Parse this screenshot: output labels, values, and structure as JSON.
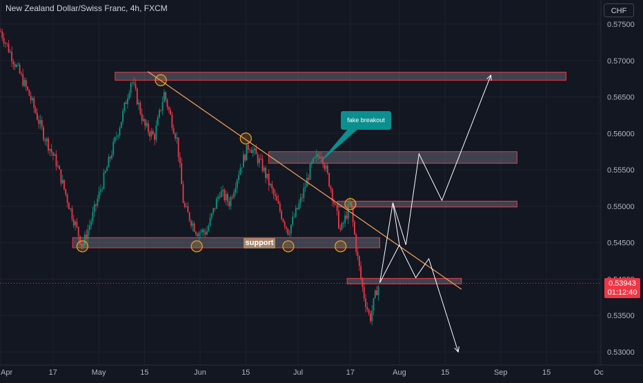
{
  "header": {
    "title": "New Zealand Dollar/Swiss Franc, 4h, FXCM",
    "currency": "CHF"
  },
  "price_tag": {
    "price": "0.53943",
    "countdown": "01:12:40"
  },
  "annotations": {
    "fake_breakout": "fake breakout",
    "support": "support"
  },
  "colors": {
    "background": "#131722",
    "up_candle": "#089981",
    "down_candle": "#f23645",
    "zone_border": "#f23645",
    "trendline": "#f7a35c",
    "projection": "#ffffff",
    "circle": "#f5a623",
    "callout": "#0b8f8f"
  },
  "chart_data": {
    "type": "candlestick",
    "title": "New Zealand Dollar/Swiss Franc, 4h, FXCM",
    "y_axis": {
      "unit": "CHF",
      "ylim": [
        0.5295,
        0.5768
      ],
      "ticks": [
        "0.57500",
        "0.57000",
        "0.56500",
        "0.56000",
        "0.55500",
        "0.55000",
        "0.54500",
        "0.54000",
        "0.53500",
        "0.53000"
      ]
    },
    "x_axis": {
      "ticks": [
        "Apr",
        "17",
        "May",
        "15",
        "Jun",
        "15",
        "Jul",
        "17",
        "Aug",
        "15",
        "Sep",
        "15",
        "Oc"
      ]
    },
    "price_path": [
      [
        "Apr 1",
        0.574
      ],
      [
        "Apr 6",
        0.569
      ],
      [
        "Apr 10",
        0.565
      ],
      [
        "Apr 14",
        0.56
      ],
      [
        "Apr 18",
        0.556
      ],
      [
        "Apr 22",
        0.55
      ],
      [
        "Apr 26",
        0.5445
      ],
      [
        "Apr 29",
        0.5485
      ],
      [
        "May 4",
        0.556
      ],
      [
        "May 8",
        0.562
      ],
      [
        "May 11",
        0.5675
      ],
      [
        "May 15",
        0.561
      ],
      [
        "May 18",
        0.5595
      ],
      [
        "May 21",
        0.5655
      ],
      [
        "May 25",
        0.559
      ],
      [
        "May 27",
        0.55
      ],
      [
        "May 31",
        0.5465
      ],
      [
        "Jun 3",
        0.5465
      ],
      [
        "Jun 7",
        0.552
      ],
      [
        "Jun 10",
        0.5505
      ],
      [
        "Jun 13",
        0.555
      ],
      [
        "Jun 16",
        0.5585
      ],
      [
        "Jun 20",
        0.5555
      ],
      [
        "Jun 24",
        0.551
      ],
      [
        "Jun 28",
        0.5465
      ],
      [
        "Jul 2",
        0.551
      ],
      [
        "Jul 5",
        0.5555
      ],
      [
        "Jul 8",
        0.5575
      ],
      [
        "Jul 11",
        0.5525
      ],
      [
        "Jul 14",
        0.5465
      ],
      [
        "Jul 17",
        0.5505
      ],
      [
        "Jul 19",
        0.5435
      ],
      [
        "Jul 21",
        0.538
      ],
      [
        "Jul 23",
        0.5345
      ],
      [
        "Jul 25",
        0.5385
      ],
      [
        "Jul 26",
        0.5394
      ]
    ],
    "last_price": 0.53943,
    "zones": [
      {
        "name": "top-resistance",
        "from": "May 6",
        "to": "Sep 21",
        "low": 0.5673,
        "high": 0.5684
      },
      {
        "name": "mid-resistance",
        "from": "Jun 22",
        "to": "Sep 6",
        "low": 0.5559,
        "high": 0.5575
      },
      {
        "name": "lower-resistance",
        "from": "Jul 13",
        "to": "Sep 6",
        "low": 0.5499,
        "high": 0.5507
      },
      {
        "name": "support",
        "from": "Apr 23",
        "to": "Jul 26",
        "low": 0.5443,
        "high": 0.5457
      },
      {
        "name": "bottom-zone",
        "from": "Jul 16",
        "to": "Aug 20",
        "low": 0.5394,
        "high": 0.5401
      }
    ],
    "trendline": {
      "from": [
        "May 16",
        0.5685
      ],
      "to": [
        "Aug 20",
        0.5386
      ]
    },
    "highlight_points": [
      [
        "Apr 26",
        0.5445
      ],
      [
        "May 31",
        0.5445
      ],
      [
        "Jun 28",
        0.5445
      ],
      [
        "Jul 14",
        0.5445
      ],
      [
        "May 20",
        0.5673
      ],
      [
        "Jun 15",
        0.5593
      ],
      [
        "Jul 17",
        0.5503
      ]
    ],
    "projection_paths": [
      [
        "Jul 26",
        0.5395
      ],
      [
        "Jul 30",
        0.5505
      ],
      [
        "Aug 3",
        0.5447
      ],
      [
        "Aug 7",
        0.5572
      ],
      [
        "Aug 14",
        0.5508
      ],
      [
        "Aug 29",
        0.568
      ]
    ],
    "projection_alt": [
      [
        "Jul 26",
        0.5395
      ],
      [
        "Aug 1",
        0.5447
      ],
      [
        "Aug 6",
        0.5402
      ],
      [
        "Aug 10",
        0.5428
      ],
      [
        "Aug 19",
        0.53
      ]
    ],
    "projection_link": [
      [
        "Jul 30",
        0.5505
      ],
      [
        "Aug 1",
        0.5447
      ]
    ]
  }
}
